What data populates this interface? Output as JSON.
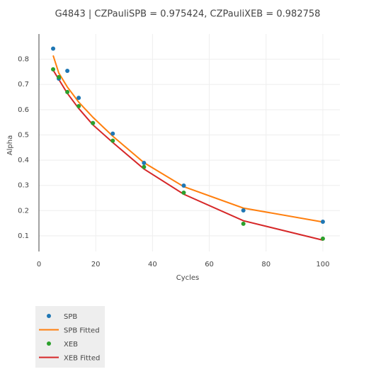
{
  "chart_data": {
    "type": "scatter-line",
    "title": "G4843 | CZPauliSPB = 0.975424, CZPauliXEB = 0.982758",
    "x_label": "Cycles",
    "y_label": "Alpha",
    "x": [
      5,
      7,
      10,
      14,
      19,
      26,
      37,
      51,
      72,
      100
    ],
    "series": [
      {
        "name": "SPB",
        "mode": "markers",
        "color": "#1f77b4",
        "values": [
          0.842,
          0.723,
          0.754,
          0.647,
          0.547,
          0.505,
          0.389,
          0.299,
          0.201,
          0.156
        ]
      },
      {
        "name": "SPB Fitted",
        "mode": "lines",
        "color": "#ff7f0e",
        "values": [
          0.815,
          0.745,
          0.69,
          0.63,
          0.57,
          0.495,
          0.39,
          0.295,
          0.21,
          0.155
        ]
      },
      {
        "name": "XEB",
        "mode": "markers",
        "color": "#2ca02c",
        "values": [
          0.76,
          0.729,
          0.67,
          0.614,
          0.547,
          0.477,
          0.373,
          0.271,
          0.148,
          0.089
        ]
      },
      {
        "name": "XEB Fitted",
        "mode": "lines",
        "color": "#d62728",
        "values": [
          0.757,
          0.72,
          0.665,
          0.605,
          0.54,
          0.47,
          0.365,
          0.265,
          0.16,
          0.083
        ]
      }
    ],
    "xlim": [
      0,
      106
    ],
    "ylim": [
      0.038,
      0.9
    ],
    "xticks": [
      0,
      20,
      40,
      60,
      80,
      100
    ],
    "yticks": [
      0.1,
      0.2,
      0.3,
      0.4,
      0.5,
      0.6,
      0.7,
      0.8
    ],
    "grid": true
  }
}
